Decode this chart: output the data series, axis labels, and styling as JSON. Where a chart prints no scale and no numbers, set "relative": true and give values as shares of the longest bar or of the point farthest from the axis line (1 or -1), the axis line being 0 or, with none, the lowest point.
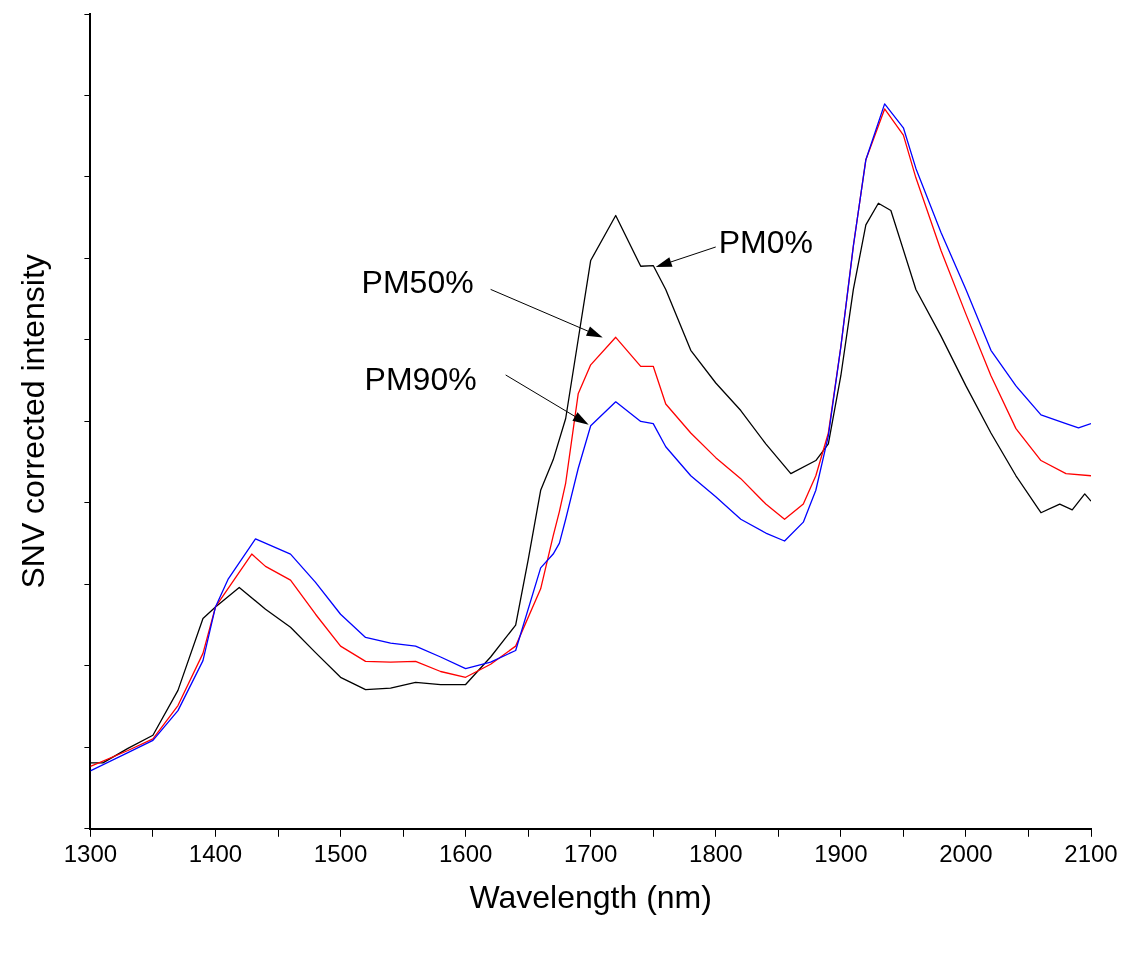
{
  "chart_data": {
    "type": "line",
    "relative": true,
    "xlabel": "Wavelength (nm)",
    "ylabel": "SNV corrected intensity",
    "xlim": [
      1300,
      2100
    ],
    "xticks": [
      1300,
      {
        "value": 1350,
        "label": null
      },
      1400,
      {
        "value": 1450,
        "label": null
      },
      1500,
      {
        "value": 1550,
        "label": null
      },
      1600,
      {
        "value": 1650,
        "label": null
      },
      1700,
      {
        "value": 1750,
        "label": null
      },
      1800,
      {
        "value": 1850,
        "label": null
      },
      1900,
      {
        "value": 1950,
        "label": null
      },
      2000,
      {
        "value": 2050,
        "label": null
      },
      2100
    ],
    "grid": false,
    "legend": false,
    "marker": "none",
    "line_style": "solid",
    "annotations": [
      {
        "text": "PM0%",
        "x": 1752,
        "y": 0.775
      },
      "PM50%",
      "PM90%"
    ],
    "series": [
      {
        "color": "#000000",
        "x": [
          1300,
          1310,
          1330,
          1350,
          1370,
          1390,
          1400,
          1419,
          1440,
          1460,
          1480,
          1500,
          1520,
          1540,
          1560,
          1580,
          1600,
          1620,
          1640,
          1650,
          1660,
          1670,
          1680,
          1690,
          1700,
          1720,
          1740,
          1750,
          1760,
          1780,
          1800,
          1820,
          1840,
          1860,
          1880,
          1890,
          1900,
          1910,
          1920,
          1930,
          1940,
          1960,
          1980,
          2000,
          2020,
          2040,
          2060,
          2075,
          2085,
          2095,
          2100
        ],
        "values": [
          0.091,
          0.091,
          0.111,
          0.129,
          0.191,
          0.29,
          0.306,
          0.333,
          0.303,
          0.278,
          0.243,
          0.209,
          0.192,
          0.194,
          0.202,
          0.199,
          0.199,
          0.237,
          0.281,
          0.371,
          0.467,
          0.509,
          0.566,
          0.675,
          0.784,
          0.846,
          0.776,
          0.777,
          0.744,
          0.66,
          0.615,
          0.577,
          0.531,
          0.49,
          0.508,
          0.531,
          0.625,
          0.744,
          0.833,
          0.863,
          0.853,
          0.744,
          0.68,
          0.611,
          0.546,
          0.487,
          0.436,
          0.448,
          0.44,
          0.462,
          0.452
        ]
      },
      {
        "color": "#ff0000",
        "x": [
          1300,
          1330,
          1350,
          1370,
          1390,
          1400,
          1429,
          1440,
          1460,
          1480,
          1500,
          1520,
          1540,
          1560,
          1580,
          1600,
          1620,
          1640,
          1660,
          1670,
          1675,
          1680,
          1690,
          1700,
          1720,
          1740,
          1750,
          1760,
          1780,
          1800,
          1820,
          1840,
          1855,
          1870,
          1880,
          1890,
          1900,
          1910,
          1920,
          1935,
          1950,
          1960,
          1980,
          2000,
          2020,
          2040,
          2060,
          2080,
          2100
        ],
        "values": [
          0.086,
          0.108,
          0.124,
          0.17,
          0.242,
          0.306,
          0.379,
          0.362,
          0.343,
          0.296,
          0.252,
          0.231,
          0.23,
          0.231,
          0.217,
          0.209,
          0.227,
          0.252,
          0.331,
          0.404,
          0.438,
          0.477,
          0.6,
          0.64,
          0.678,
          0.638,
          0.638,
          0.586,
          0.546,
          0.512,
          0.483,
          0.448,
          0.427,
          0.448,
          0.487,
          0.546,
          0.665,
          0.804,
          0.923,
          0.993,
          0.957,
          0.898,
          0.798,
          0.71,
          0.625,
          0.552,
          0.508,
          0.49,
          0.487
        ]
      },
      {
        "color": "#0000ff",
        "x": [
          1300,
          1330,
          1350,
          1370,
          1390,
          1400,
          1410,
          1432,
          1460,
          1480,
          1500,
          1520,
          1540,
          1560,
          1580,
          1600,
          1620,
          1640,
          1660,
          1670,
          1675,
          1680,
          1690,
          1700,
          1720,
          1740,
          1750,
          1760,
          1780,
          1800,
          1820,
          1840,
          1855,
          1870,
          1880,
          1890,
          1900,
          1910,
          1920,
          1935,
          1950,
          1960,
          1980,
          2000,
          2020,
          2040,
          2060,
          2080,
          2090,
          2100
        ],
        "values": [
          0.08,
          0.105,
          0.122,
          0.163,
          0.232,
          0.306,
          0.344,
          0.4,
          0.379,
          0.34,
          0.296,
          0.264,
          0.256,
          0.252,
          0.237,
          0.221,
          0.23,
          0.246,
          0.36,
          0.379,
          0.394,
          0.427,
          0.497,
          0.556,
          0.589,
          0.562,
          0.559,
          0.527,
          0.487,
          0.458,
          0.427,
          0.408,
          0.397,
          0.423,
          0.467,
          0.542,
          0.665,
          0.804,
          0.923,
          1,
          0.967,
          0.911,
          0.823,
          0.744,
          0.66,
          0.611,
          0.571,
          0.559,
          0.553,
          0.559
        ]
      }
    ]
  }
}
